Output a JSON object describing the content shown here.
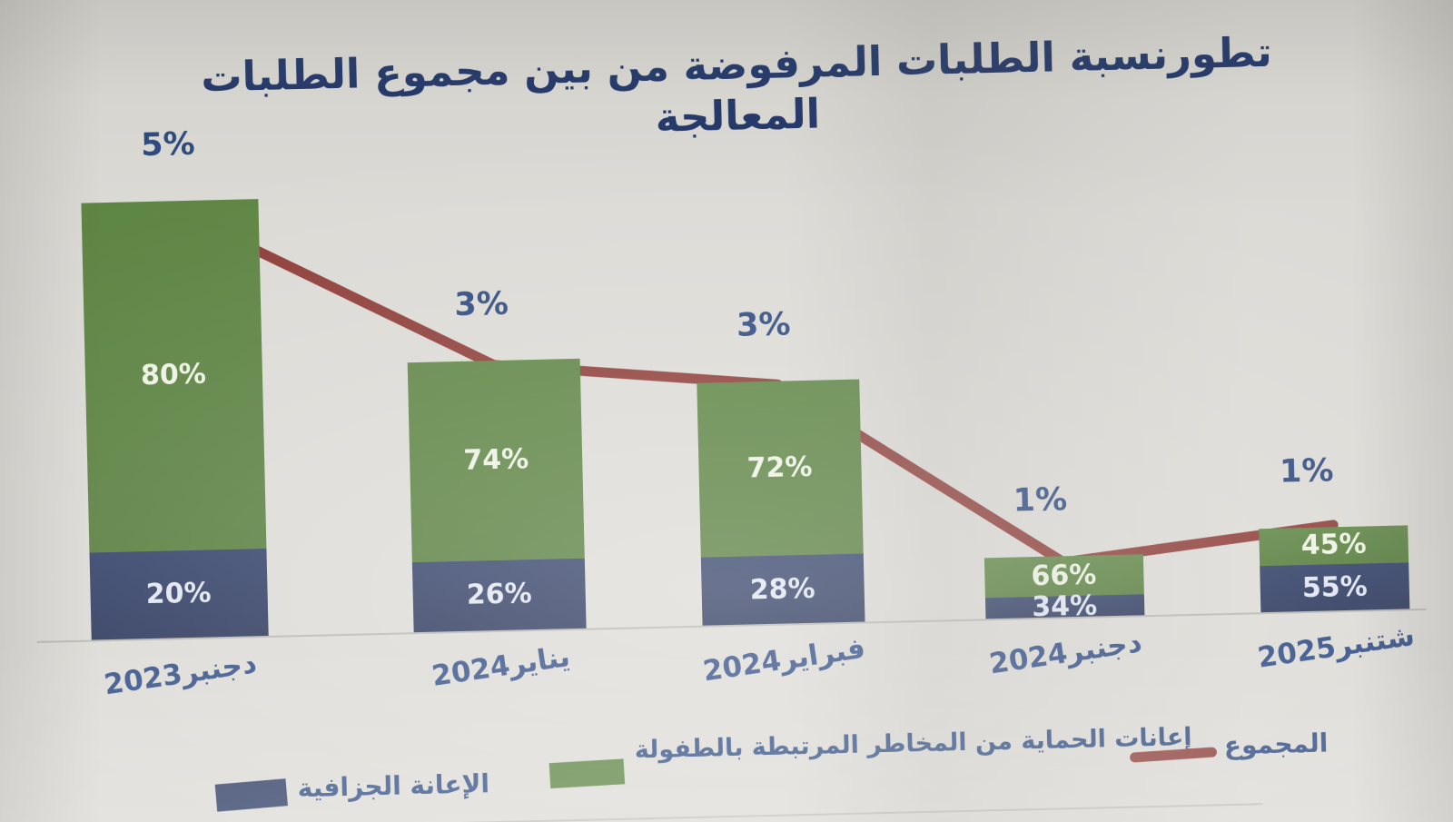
{
  "title": "تطورنسبة الطلبات المرفوضة من بين مجموع الطلبات المعالجة",
  "chart_data": {
    "type": "bar",
    "subtype": "stacked-bars-with-total-line",
    "direction": "rtl",
    "title": "تطورنسبة الطلبات المرفوضة من بين مجموع الطلبات المعالجة",
    "categories": [
      "دجنبر2023",
      "يناير2024",
      "فبراير2024",
      "دجنبر2024",
      "شتنبر2025"
    ],
    "series": [
      {
        "name": "الإعانة الجزافية",
        "role": "bar-bottom-segment",
        "color": "#2b3a62",
        "values": [
          20,
          26,
          28,
          34,
          55
        ],
        "labels": [
          "20%",
          "26%",
          "28%",
          "34%",
          "55%"
        ]
      },
      {
        "name": "إعانات الحماية من المخاطر المرتبطة بالطفولة",
        "role": "bar-top-segment",
        "color": "#57803d",
        "values": [
          80,
          74,
          72,
          66,
          45
        ],
        "labels": [
          "80%",
          "74%",
          "72%",
          "66%",
          "45%"
        ]
      },
      {
        "name": "المجموع",
        "role": "line",
        "color": "#8d3c37",
        "values": [
          5,
          3,
          3,
          1,
          1
        ],
        "labels": [
          "5%",
          "3%",
          "3%",
          "1%",
          "1%"
        ]
      }
    ],
    "bar_total_heights_pct": [
      5.0,
      3.09,
      2.78,
      0.7,
      0.96
    ],
    "ylim": [
      0,
      5.3
    ],
    "gridlines": false,
    "y_axis_visible": false,
    "x_axis_visible": true,
    "legend_position": "bottom"
  },
  "legend": {
    "items": [
      {
        "label": "الإعانة الجزافية",
        "swatch": "navy-rect"
      },
      {
        "label": "إعانات الحماية من المخاطر المرتبطة بالطفولة",
        "swatch": "green-rect"
      },
      {
        "label": "المجموع",
        "swatch": "red-line"
      }
    ]
  },
  "colors": {
    "bar_green": "#57803d",
    "bar_navy": "#2b3a62",
    "line_red": "#8d3c37",
    "label_blue": "#2d4a83",
    "title_navy": "#24396b",
    "paper": "#dcdad5"
  }
}
